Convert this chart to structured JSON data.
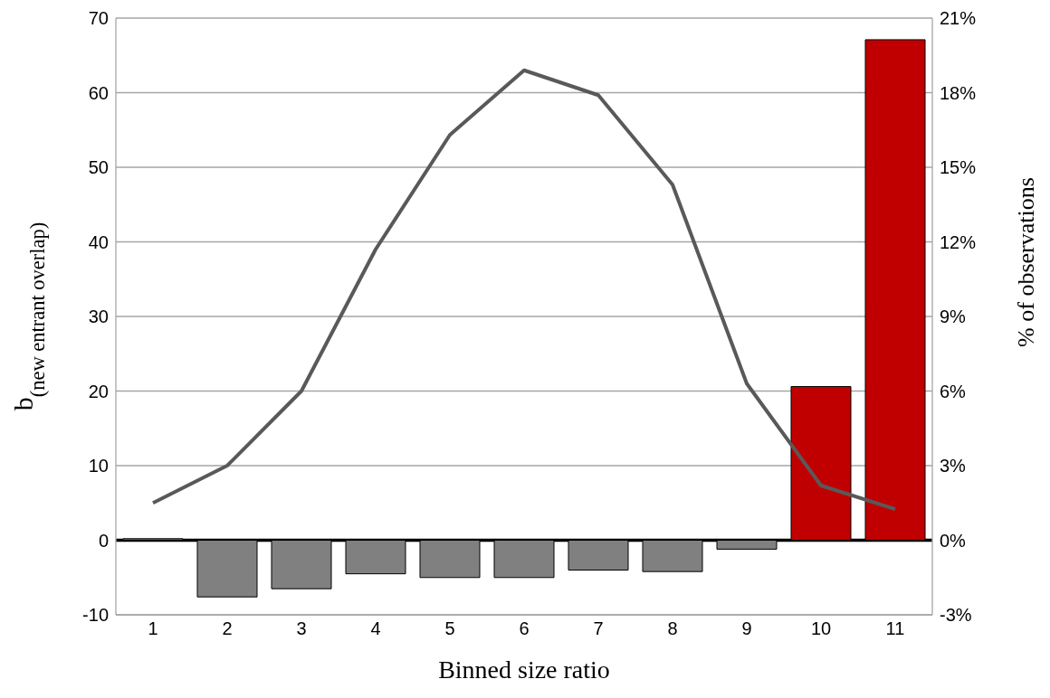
{
  "chart_data": {
    "type": "bar",
    "xlabel": "Binned size ratio",
    "ylabel": "b$_{(new entrant  overlap)}$",
    "y2label": "% of observations",
    "categories": [
      "1",
      "2",
      "3",
      "4",
      "5",
      "6",
      "7",
      "8",
      "9",
      "10",
      "11"
    ],
    "series": [
      {
        "colors": [
          "#808080",
          "#808080",
          "#808080",
          "#808080",
          "#808080",
          "#808080",
          "#808080",
          "#808080",
          "#808080",
          "#c00000",
          "#c00000"
        ],
        "values": [
          0.2,
          -7.6,
          -6.5,
          -4.5,
          -5.0,
          -5.0,
          -4.0,
          -4.2,
          -1.2,
          20.6,
          67.1
        ]
      },
      {
        "type": "line",
        "axis": "y2",
        "color": "#595959",
        "values": [
          1.5,
          3.0,
          6.0,
          11.7,
          16.3,
          18.9,
          17.9,
          14.3,
          6.3,
          2.2,
          1.25
        ]
      }
    ],
    "ylim": [
      -10,
      70
    ],
    "yticks": [
      -10,
      0,
      10,
      20,
      30,
      40,
      50,
      60,
      70
    ],
    "y2lim": [
      -3,
      21
    ],
    "y2ticks": [
      {
        "value": -3,
        "label": "-3%"
      },
      {
        "value": 0,
        "label": "0%"
      },
      {
        "value": 3,
        "label": "3%"
      },
      {
        "value": 6,
        "label": "6%"
      },
      {
        "value": 9,
        "label": "9%"
      },
      {
        "value": 12,
        "label": "12%"
      },
      {
        "value": 15,
        "label": "15%"
      },
      {
        "value": 18,
        "label": "18%"
      },
      {
        "value": 21,
        "label": "21%"
      }
    ],
    "grid": "y",
    "marker": "none"
  }
}
